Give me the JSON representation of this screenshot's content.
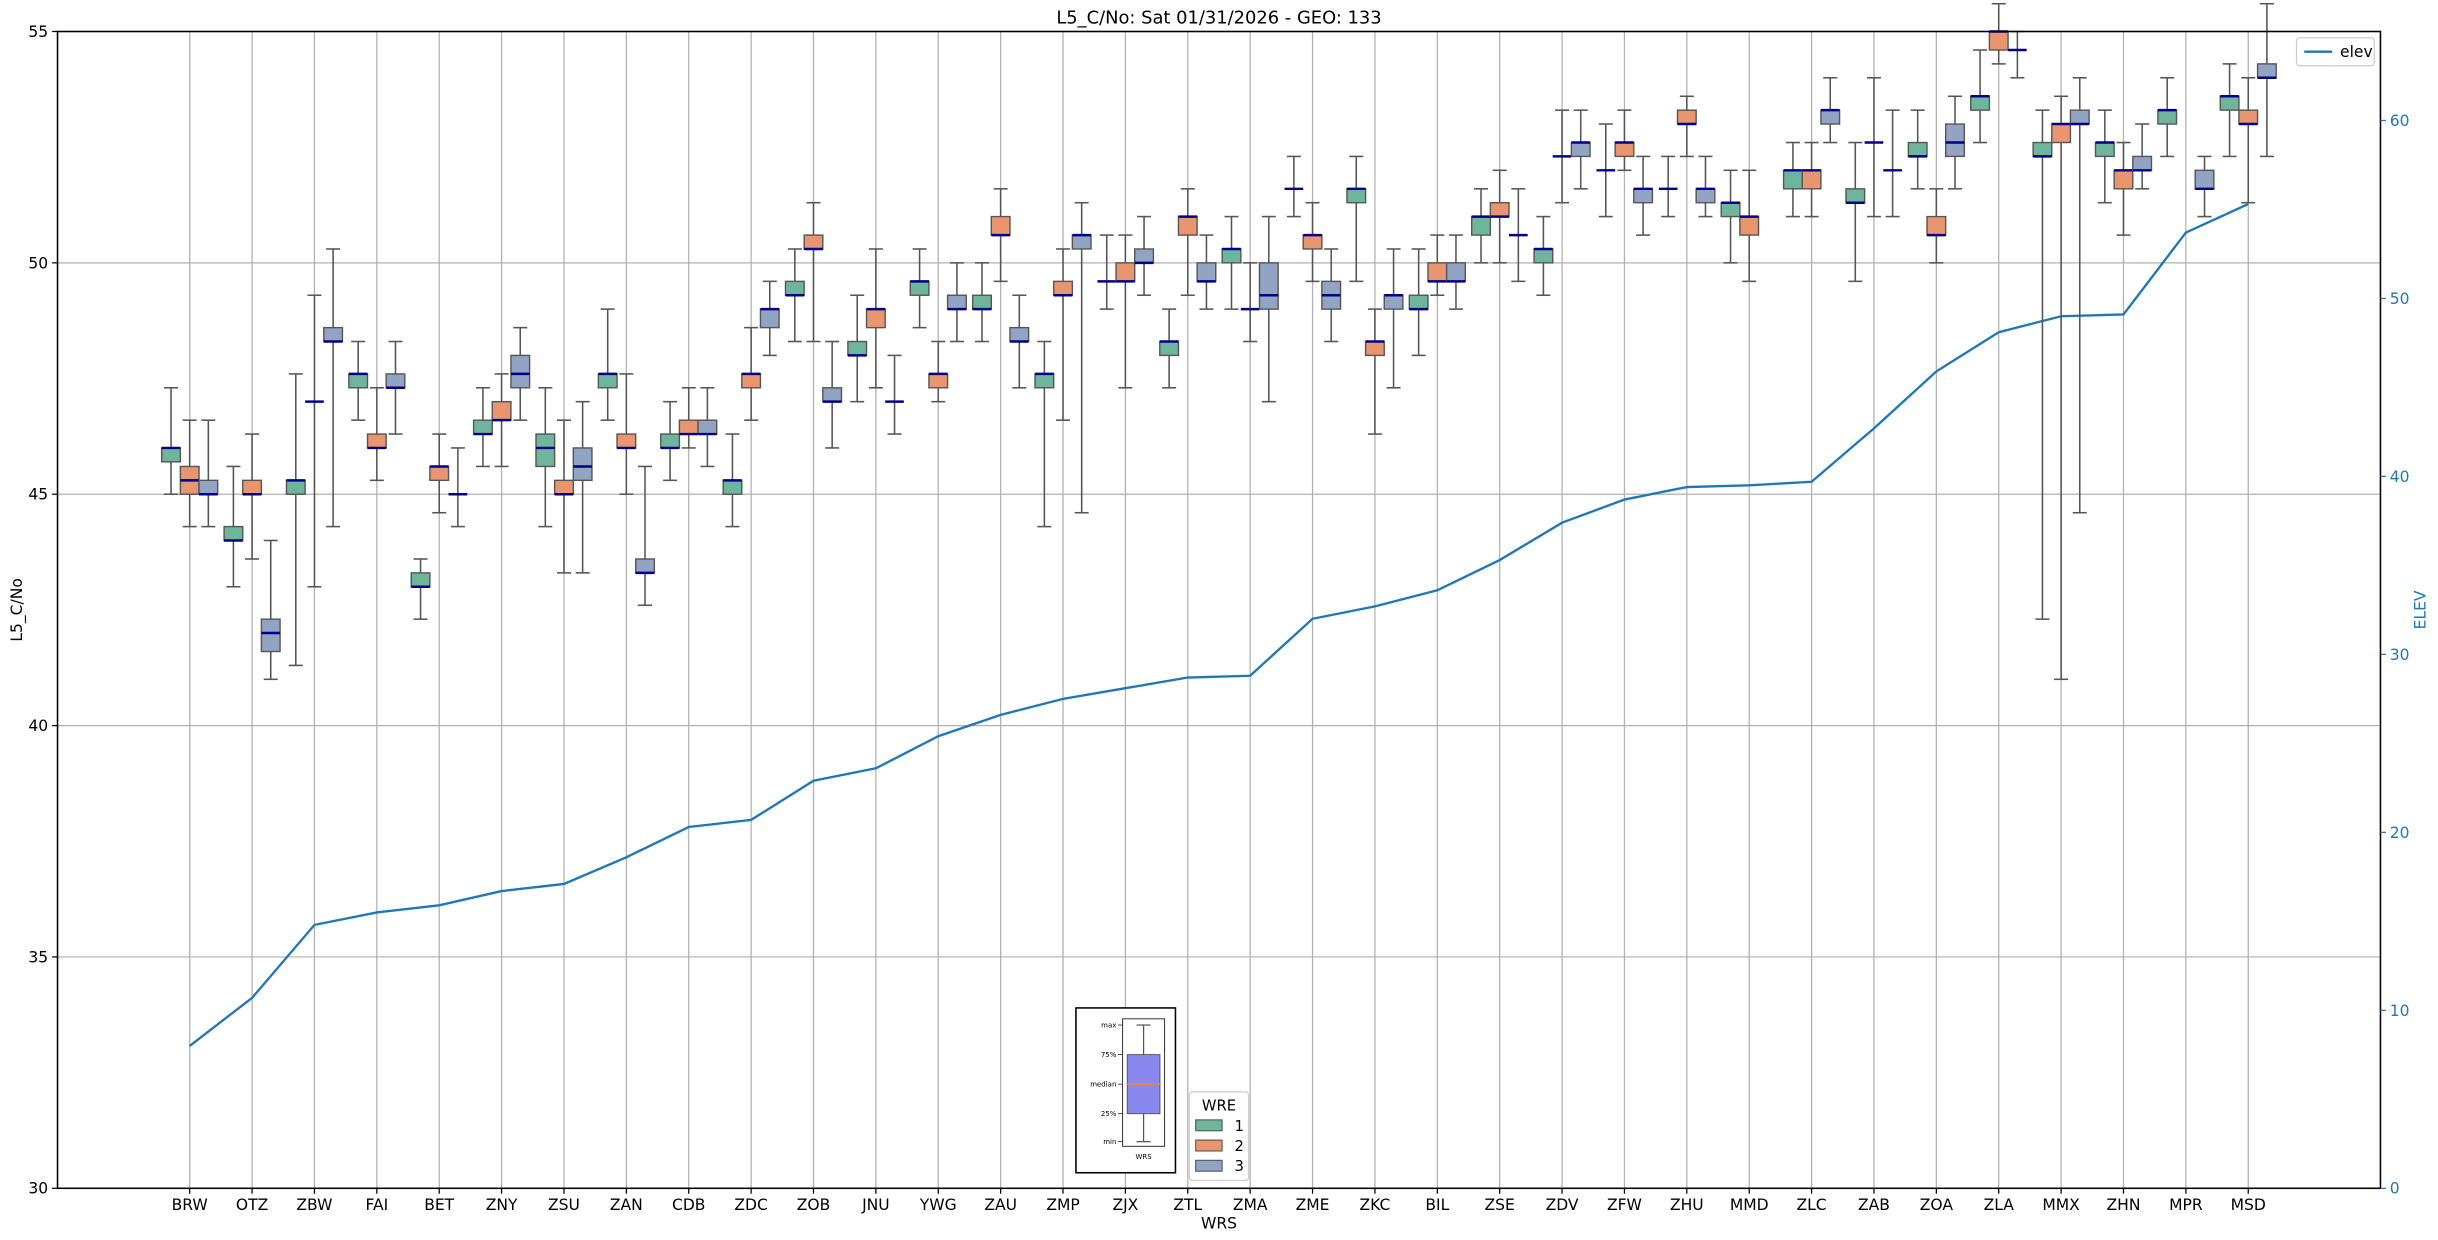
{
  "chart_data": {
    "type": "box",
    "title": "L5_C/No: Sat 01/31/2026 - GEO: 133",
    "xlabel": "WRS",
    "ylabel": "L5_C/No",
    "y2label": "ELEV",
    "ylim": [
      30,
      55
    ],
    "y2lim": [
      0,
      65
    ],
    "yticks": [
      30,
      35,
      40,
      45,
      50,
      55
    ],
    "y2ticks": [
      0,
      10,
      20,
      30,
      40,
      50,
      60
    ],
    "grid": true,
    "categories": [
      "BRW",
      "OTZ",
      "ZBW",
      "FAI",
      "BET",
      "ZNY",
      "ZSU",
      "ZAN",
      "CDB",
      "ZDC",
      "ZOB",
      "JNU",
      "YWG",
      "ZAU",
      "ZMP",
      "ZJX",
      "ZTL",
      "ZMA",
      "ZME",
      "ZKC",
      "BIL",
      "ZSE",
      "ZDV",
      "ZFW",
      "ZHU",
      "MMD",
      "ZLC",
      "ZAB",
      "ZOA",
      "ZLA",
      "MMX",
      "ZHN",
      "MPR",
      "MSD"
    ],
    "box_format": [
      "min",
      "q1",
      "median",
      "q3",
      "max"
    ],
    "series": [
      {
        "name": "1",
        "color": "#6fb59c",
        "boxes": [
          [
            45.0,
            45.7,
            46.0,
            46.0,
            47.3
          ],
          [
            43.0,
            44.0,
            44.0,
            44.3,
            45.6
          ],
          [
            41.3,
            45.0,
            45.3,
            45.3,
            47.6
          ],
          [
            46.6,
            47.3,
            47.6,
            47.6,
            48.3
          ],
          [
            42.3,
            43.0,
            43.0,
            43.3,
            43.6
          ],
          [
            45.6,
            46.3,
            46.3,
            46.6,
            47.3
          ],
          [
            44.3,
            45.6,
            46.0,
            46.3,
            47.3
          ],
          [
            46.6,
            47.3,
            47.6,
            47.6,
            49.0
          ],
          [
            45.3,
            46.0,
            46.0,
            46.3,
            47.0
          ],
          [
            44.3,
            45.0,
            45.3,
            45.3,
            46.3
          ],
          [
            48.3,
            49.3,
            49.3,
            49.6,
            50.3
          ],
          [
            47.0,
            48.0,
            48.0,
            48.3,
            49.3
          ],
          [
            48.6,
            49.3,
            49.6,
            49.6,
            50.3
          ],
          [
            48.3,
            49.0,
            49.0,
            49.3,
            50.0
          ],
          [
            44.3,
            47.3,
            47.6,
            47.6,
            48.3
          ],
          [
            49.0,
            49.6,
            49.6,
            49.6,
            50.6
          ],
          [
            47.3,
            48.0,
            48.3,
            48.3,
            49.0
          ],
          [
            49.0,
            50.0,
            50.3,
            50.3,
            51.0
          ],
          [
            51.0,
            51.6,
            51.6,
            51.6,
            52.3
          ],
          [
            49.6,
            51.3,
            51.6,
            51.6,
            52.3
          ],
          [
            48.0,
            49.0,
            49.0,
            49.3,
            50.3
          ],
          [
            50.0,
            50.6,
            51.0,
            51.0,
            51.6
          ],
          [
            49.3,
            50.0,
            50.3,
            50.3,
            51.0
          ],
          [
            51.0,
            52.0,
            52.0,
            52.0,
            53.0
          ],
          [
            51.0,
            51.6,
            51.6,
            51.6,
            52.3
          ],
          [
            50.0,
            51.0,
            51.3,
            51.3,
            52.0
          ],
          [
            51.0,
            51.6,
            52.0,
            52.0,
            52.6
          ],
          [
            49.6,
            51.3,
            51.3,
            51.6,
            52.6
          ],
          [
            51.6,
            52.3,
            52.3,
            52.6,
            53.3
          ],
          [
            52.6,
            53.3,
            53.6,
            53.6,
            54.6
          ],
          [
            42.3,
            52.3,
            52.3,
            52.6,
            53.3
          ],
          [
            51.3,
            52.3,
            52.6,
            52.6,
            53.3
          ],
          [
            52.3,
            53.0,
            53.3,
            53.3,
            54.0
          ],
          [
            52.3,
            53.3,
            53.6,
            53.6,
            54.3
          ]
        ]
      },
      {
        "name": "2",
        "color": "#e9956f",
        "boxes": [
          [
            44.3,
            45.0,
            45.3,
            45.6,
            46.6
          ],
          [
            43.6,
            45.0,
            45.0,
            45.3,
            46.3
          ],
          [
            43.0,
            47.0,
            47.0,
            47.0,
            49.3
          ],
          [
            45.3,
            46.0,
            46.0,
            46.3,
            47.3
          ],
          [
            44.6,
            45.3,
            45.6,
            45.6,
            46.3
          ],
          [
            45.6,
            46.6,
            46.6,
            47.0,
            47.6
          ],
          [
            43.3,
            45.0,
            45.0,
            45.3,
            46.6
          ],
          [
            45.0,
            46.0,
            46.0,
            46.3,
            47.6
          ],
          [
            46.0,
            46.3,
            46.3,
            46.6,
            47.3
          ],
          [
            46.6,
            47.3,
            47.6,
            47.6,
            48.6
          ],
          [
            48.3,
            50.3,
            50.3,
            50.6,
            51.3
          ],
          [
            47.3,
            48.6,
            49.0,
            49.0,
            50.3
          ],
          [
            47.0,
            47.3,
            47.6,
            47.6,
            48.3
          ],
          [
            49.6,
            50.6,
            50.6,
            51.0,
            51.6
          ],
          [
            46.6,
            49.3,
            49.3,
            49.6,
            50.3
          ],
          [
            47.3,
            49.6,
            49.6,
            50.0,
            50.6
          ],
          [
            49.3,
            50.6,
            51.0,
            51.0,
            51.6
          ],
          [
            48.3,
            49.0,
            49.0,
            49.0,
            50.0
          ],
          [
            49.6,
            50.3,
            50.6,
            50.6,
            51.3
          ],
          [
            46.3,
            48.0,
            48.3,
            48.3,
            49.0
          ],
          [
            49.3,
            49.6,
            49.6,
            50.0,
            50.6
          ],
          [
            50.0,
            51.0,
            51.0,
            51.3,
            52.0
          ],
          [
            51.3,
            52.3,
            52.3,
            52.3,
            53.3
          ],
          [
            52.0,
            52.3,
            52.6,
            52.6,
            53.3
          ],
          [
            52.3,
            53.0,
            53.0,
            53.3,
            53.6
          ],
          [
            49.6,
            50.6,
            51.0,
            51.0,
            52.0
          ],
          [
            51.0,
            51.6,
            52.0,
            52.0,
            52.6
          ],
          [
            51.0,
            52.6,
            52.6,
            52.6,
            54.0
          ],
          [
            50.0,
            50.6,
            50.6,
            51.0,
            51.6
          ],
          [
            54.3,
            54.6,
            55.0,
            55.0,
            55.6
          ],
          [
            41.0,
            52.6,
            53.0,
            53.0,
            53.6
          ],
          [
            50.6,
            51.6,
            52.0,
            52.0,
            52.6
          ],
          null,
          [
            51.3,
            53.0,
            53.0,
            53.3,
            54.0
          ]
        ]
      },
      {
        "name": "3",
        "color": "#93a3c4",
        "boxes": [
          [
            44.3,
            45.0,
            45.0,
            45.3,
            46.6
          ],
          [
            41.0,
            41.6,
            42.0,
            42.3,
            44.0
          ],
          [
            44.3,
            48.3,
            48.3,
            48.6,
            50.3
          ],
          [
            46.3,
            47.3,
            47.3,
            47.6,
            48.3
          ],
          [
            44.3,
            45.0,
            45.0,
            45.0,
            46.0
          ],
          [
            46.6,
            47.3,
            47.6,
            48.0,
            48.6
          ],
          [
            43.3,
            45.3,
            45.6,
            46.0,
            47.0
          ],
          [
            42.6,
            43.3,
            43.3,
            43.6,
            45.6
          ],
          [
            45.6,
            46.3,
            46.3,
            46.6,
            47.3
          ],
          [
            48.0,
            48.6,
            49.0,
            49.0,
            49.6
          ],
          [
            46.0,
            47.0,
            47.0,
            47.3,
            48.3
          ],
          [
            46.3,
            47.0,
            47.0,
            47.0,
            48.0
          ],
          [
            48.3,
            49.0,
            49.0,
            49.3,
            50.0
          ],
          [
            47.3,
            48.3,
            48.3,
            48.6,
            49.3
          ],
          [
            44.6,
            50.3,
            50.6,
            50.6,
            51.3
          ],
          [
            49.3,
            50.0,
            50.0,
            50.3,
            51.0
          ],
          [
            49.0,
            49.6,
            49.6,
            50.0,
            50.6
          ],
          [
            47.0,
            49.0,
            49.3,
            50.0,
            51.0
          ],
          [
            48.3,
            49.0,
            49.3,
            49.6,
            50.3
          ],
          [
            47.3,
            49.0,
            49.3,
            49.3,
            50.3
          ],
          [
            49.0,
            49.6,
            49.6,
            50.0,
            50.6
          ],
          [
            49.6,
            50.6,
            50.6,
            50.6,
            51.6
          ],
          [
            51.6,
            52.3,
            52.6,
            52.6,
            53.3
          ],
          [
            50.6,
            51.3,
            51.6,
            51.6,
            52.3
          ],
          [
            51.0,
            51.3,
            51.6,
            51.6,
            52.3
          ],
          null,
          [
            52.6,
            53.0,
            53.3,
            53.3,
            54.0
          ],
          [
            51.0,
            52.0,
            52.0,
            52.0,
            53.3
          ],
          [
            51.6,
            52.3,
            52.6,
            53.0,
            53.6
          ],
          [
            54.0,
            54.6,
            54.6,
            54.6,
            55.0
          ],
          [
            44.6,
            53.0,
            53.0,
            53.3,
            54.0
          ],
          [
            51.6,
            52.0,
            52.0,
            52.3,
            53.0
          ],
          [
            51.0,
            51.6,
            51.6,
            52.0,
            52.3
          ],
          [
            52.3,
            54.0,
            54.0,
            54.3,
            55.6
          ]
        ]
      }
    ],
    "elev": {
      "name": "elev",
      "color": "#1f77b4",
      "values": [
        8.0,
        10.7,
        14.8,
        15.5,
        15.9,
        16.7,
        17.1,
        18.6,
        20.3,
        20.7,
        22.9,
        23.6,
        25.4,
        26.6,
        27.5,
        28.1,
        28.7,
        28.8,
        32.0,
        32.7,
        33.6,
        35.3,
        37.4,
        38.7,
        39.4,
        39.5,
        39.7,
        42.7,
        45.9,
        48.1,
        49.0,
        49.1,
        53.7,
        55.3
      ]
    },
    "median_color": "#00008b",
    "legend_wre": {
      "title": "WRE",
      "placement": "bottom-center",
      "labels": [
        "1",
        "2",
        "3"
      ]
    },
    "legend_elev": {
      "label": "elev",
      "placement": "top-right"
    },
    "key_inset": {
      "labels": [
        "max",
        "75%",
        "median",
        "25%",
        "min"
      ],
      "xlabel": "WRS",
      "box_color": "#8888ee",
      "median_color": "#ff8c00"
    }
  }
}
